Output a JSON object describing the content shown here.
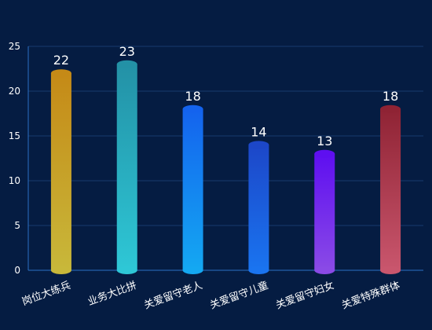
{
  "chart_data": {
    "type": "bar",
    "title": "",
    "xlabel": "",
    "ylabel": "",
    "ylim": [
      0,
      25
    ],
    "y_ticks": [
      0,
      5,
      10,
      15,
      20,
      25
    ],
    "grid": true,
    "categories": [
      "岗位大练兵",
      "业务大比拼",
      "关爱留守老人",
      "关爱留守儿童",
      "关爱留守妇女",
      "关爱特殊群体"
    ],
    "values": [
      22,
      23,
      18,
      14,
      13,
      18
    ],
    "bar_colors": [
      {
        "top": "#c58a17",
        "bottom": "#c8b83a"
      },
      {
        "top": "#2391a6",
        "bottom": "#2ec7d6"
      },
      {
        "top": "#1463ee",
        "bottom": "#14a8f2"
      },
      {
        "top": "#1c47c8",
        "bottom": "#1a74f0"
      },
      {
        "top": "#5e0ff0",
        "bottom": "#8a4ae6"
      },
      {
        "top": "#8f2334",
        "bottom": "#c9566d"
      }
    ],
    "background": "#051c42",
    "gridline_color": "#163a6e",
    "axis_color": "#2a6fc4",
    "label_color": "#ffffff"
  }
}
